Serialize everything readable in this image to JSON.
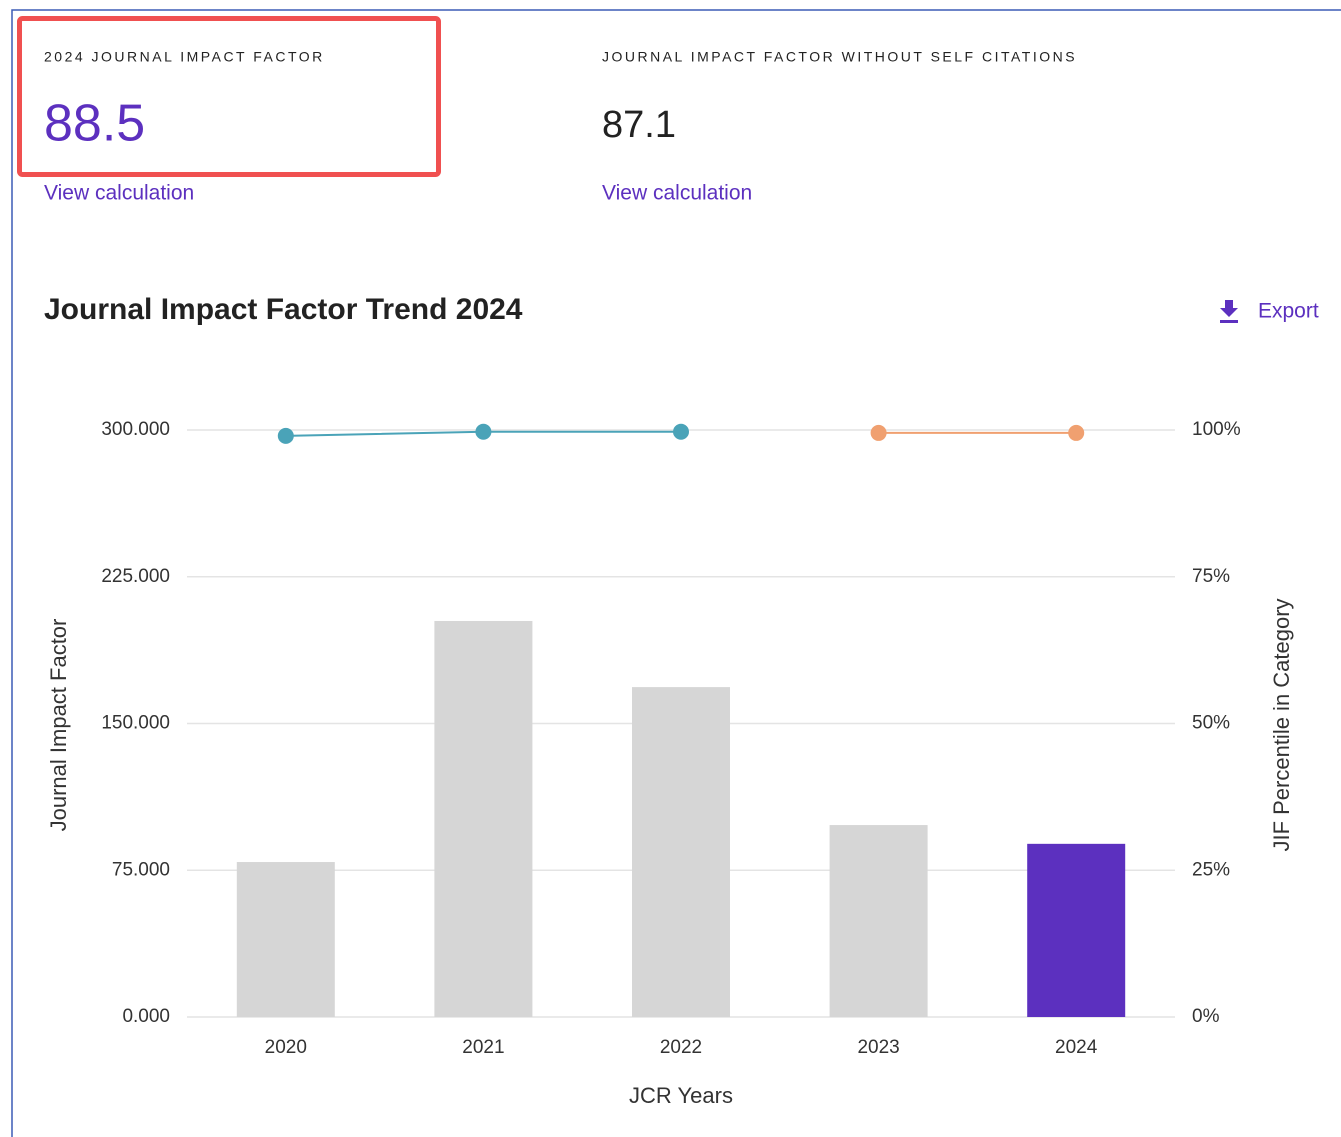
{
  "metrics": [
    {
      "label": "2024 JOURNAL IMPACT FACTOR",
      "value": "88.5",
      "link": "View calculation"
    },
    {
      "label": "JOURNAL IMPACT FACTOR WITHOUT SELF CITATIONS",
      "value": "87.1",
      "link": "View calculation"
    }
  ],
  "export": "Export",
  "chart_data": {
    "type": "bar",
    "title": "Journal Impact Factor Trend 2024",
    "x_label": "JCR Years",
    "y_label": "Journal Impact Factor",
    "y2_label": "JIF Percentile in Category",
    "categories": [
      "2020",
      "2021",
      "2022",
      "2023",
      "2024"
    ],
    "values": [
      79.2,
      202.4,
      168.6,
      98.1,
      88.5
    ],
    "colors": [
      "#d6d6d6",
      "#d6d6d6",
      "#d6d6d6",
      "#d6d6d6",
      "#5c30bf"
    ],
    "ylim": [
      0,
      300
    ],
    "yticks": [
      {
        "value": 0,
        "label": "0.000"
      },
      {
        "value": 75,
        "label": "75.000"
      },
      {
        "value": 150,
        "label": "150.000"
      },
      {
        "value": 225,
        "label": "225.000"
      },
      {
        "value": 300,
        "label": "300.000"
      }
    ],
    "y2lim": [
      0,
      100
    ],
    "y2ticks": [
      {
        "value": 0,
        "label": "0%"
      },
      {
        "value": 25,
        "label": "25%"
      },
      {
        "value": 50,
        "label": "50%"
      },
      {
        "value": 75,
        "label": "75%"
      },
      {
        "value": 100,
        "label": "100%"
      }
    ],
    "grid": true,
    "series": [
      {
        "color": "#4aa3b8",
        "axis": "y2",
        "values": [
          99.0,
          99.7,
          99.7,
          null,
          null
        ]
      },
      {
        "color": "#f0a070",
        "axis": "y2",
        "values": [
          null,
          null,
          null,
          99.5,
          99.5
        ]
      }
    ]
  }
}
